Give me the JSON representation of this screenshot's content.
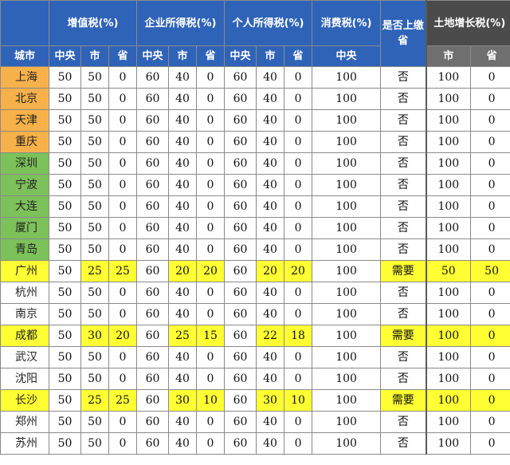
{
  "headers": {
    "city": "城市",
    "vat": "增值税(%)",
    "corp": "企业所得税(%)",
    "personal": "个人所得税(%)",
    "consumption": "消费税(%)",
    "province_submit": "是否上缴省",
    "land": "土地增长税(%)",
    "central": "中央",
    "city_level": "市",
    "province": "省"
  },
  "colors": {
    "header_blue": "#2f63b8",
    "header_gray": "#6f6f6f",
    "tier1": "#f7b14a",
    "tier2": "#7cc15a",
    "highlight": "#ffff33"
  },
  "rows": [
    {
      "city": "上海",
      "tier": "orange",
      "hl": false,
      "v": [
        "50",
        "50",
        "0",
        "60",
        "40",
        "0",
        "60",
        "40",
        "0",
        "100",
        "否",
        "100",
        "0"
      ]
    },
    {
      "city": "北京",
      "tier": "orange",
      "hl": false,
      "v": [
        "50",
        "50",
        "0",
        "60",
        "40",
        "0",
        "60",
        "40",
        "0",
        "100",
        "否",
        "100",
        "0"
      ]
    },
    {
      "city": "天津",
      "tier": "orange",
      "hl": false,
      "v": [
        "50",
        "50",
        "0",
        "60",
        "40",
        "0",
        "60",
        "40",
        "0",
        "100",
        "否",
        "100",
        "0"
      ]
    },
    {
      "city": "重庆",
      "tier": "orange",
      "hl": false,
      "v": [
        "50",
        "50",
        "0",
        "60",
        "40",
        "0",
        "60",
        "40",
        "0",
        "100",
        "否",
        "100",
        "0"
      ]
    },
    {
      "city": "深圳",
      "tier": "green",
      "hl": false,
      "v": [
        "50",
        "50",
        "0",
        "60",
        "40",
        "0",
        "60",
        "40",
        "0",
        "100",
        "否",
        "100",
        "0"
      ]
    },
    {
      "city": "宁波",
      "tier": "green",
      "hl": false,
      "v": [
        "50",
        "50",
        "0",
        "60",
        "40",
        "0",
        "60",
        "40",
        "0",
        "100",
        "否",
        "100",
        "0"
      ]
    },
    {
      "city": "大连",
      "tier": "green",
      "hl": false,
      "v": [
        "50",
        "50",
        "0",
        "60",
        "40",
        "0",
        "60",
        "40",
        "0",
        "100",
        "否",
        "100",
        "0"
      ]
    },
    {
      "city": "厦门",
      "tier": "green",
      "hl": false,
      "v": [
        "50",
        "50",
        "0",
        "60",
        "40",
        "0",
        "60",
        "40",
        "0",
        "100",
        "否",
        "100",
        "0"
      ]
    },
    {
      "city": "青岛",
      "tier": "green",
      "hl": false,
      "v": [
        "50",
        "50",
        "0",
        "60",
        "40",
        "0",
        "60",
        "40",
        "0",
        "100",
        "否",
        "100",
        "0"
      ]
    },
    {
      "city": "广州",
      "tier": "none",
      "hl": true,
      "v": [
        "50",
        "25",
        "25",
        "60",
        "20",
        "20",
        "60",
        "20",
        "20",
        "100",
        "需要",
        "50",
        "50"
      ]
    },
    {
      "city": "杭州",
      "tier": "none",
      "hl": false,
      "v": [
        "50",
        "50",
        "0",
        "60",
        "40",
        "0",
        "60",
        "40",
        "0",
        "100",
        "否",
        "100",
        "0"
      ]
    },
    {
      "city": "南京",
      "tier": "none",
      "hl": false,
      "v": [
        "50",
        "50",
        "0",
        "60",
        "40",
        "0",
        "60",
        "40",
        "0",
        "100",
        "否",
        "100",
        "0"
      ]
    },
    {
      "city": "成都",
      "tier": "none",
      "hl": true,
      "v": [
        "50",
        "30",
        "20",
        "60",
        "25",
        "15",
        "60",
        "22",
        "18",
        "100",
        "需要",
        "100",
        "0"
      ]
    },
    {
      "city": "武汉",
      "tier": "none",
      "hl": false,
      "v": [
        "50",
        "50",
        "0",
        "60",
        "40",
        "0",
        "60",
        "40",
        "0",
        "100",
        "否",
        "100",
        "0"
      ]
    },
    {
      "city": "沈阳",
      "tier": "none",
      "hl": false,
      "v": [
        "50",
        "50",
        "0",
        "60",
        "40",
        "0",
        "60",
        "40",
        "0",
        "100",
        "否",
        "100",
        "0"
      ]
    },
    {
      "city": "长沙",
      "tier": "none",
      "hl": true,
      "v": [
        "50",
        "25",
        "25",
        "60",
        "30",
        "10",
        "60",
        "30",
        "10",
        "100",
        "需要",
        "100",
        "0"
      ]
    },
    {
      "city": "郑州",
      "tier": "none",
      "hl": false,
      "v": [
        "50",
        "50",
        "0",
        "60",
        "40",
        "0",
        "60",
        "40",
        "0",
        "100",
        "否",
        "100",
        "0"
      ]
    },
    {
      "city": "苏州",
      "tier": "none",
      "hl": false,
      "v": [
        "50",
        "50",
        "0",
        "60",
        "40",
        "0",
        "60",
        "40",
        "0",
        "100",
        "否",
        "100",
        "0"
      ]
    }
  ]
}
